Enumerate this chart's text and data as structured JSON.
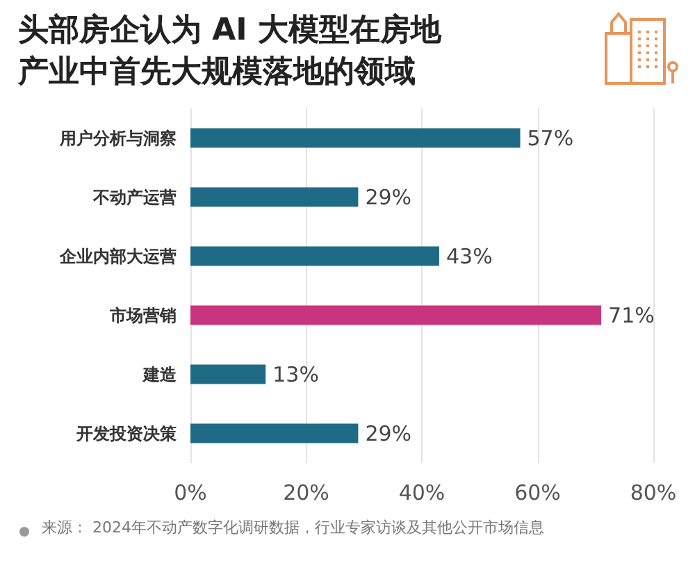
{
  "chart_data": {
    "type": "bar",
    "orientation": "horizontal",
    "title": "头部房企认为 AI 大模型在房地产业中首先大规模落地的领域",
    "categories": [
      "用户分析与洞察",
      "不动产运营",
      "企业内部大运营",
      "市场营销",
      "建造",
      "开发投资决策"
    ],
    "values": [
      57,
      29,
      43,
      71,
      13,
      29
    ],
    "colors": [
      "#1f6b85",
      "#1f6b85",
      "#1f6b85",
      "#c9347f",
      "#1f6b85",
      "#1f6b85"
    ],
    "value_labels": [
      "57%",
      "29%",
      "43%",
      "71%",
      "13%",
      "29%"
    ],
    "xlim": [
      0,
      80
    ],
    "xticks": [
      {
        "value": 0,
        "label": "0%"
      },
      {
        "value": 20,
        "label": "20%"
      },
      {
        "value": 40,
        "label": "40%"
      },
      {
        "value": 60,
        "label": "60%"
      },
      {
        "value": 80,
        "label": "80%"
      }
    ],
    "grid": "x",
    "annotations": [
      "来源： 2024年不动产数字化调研数据，行业专家访谈及其他公开市场信息"
    ]
  }
}
